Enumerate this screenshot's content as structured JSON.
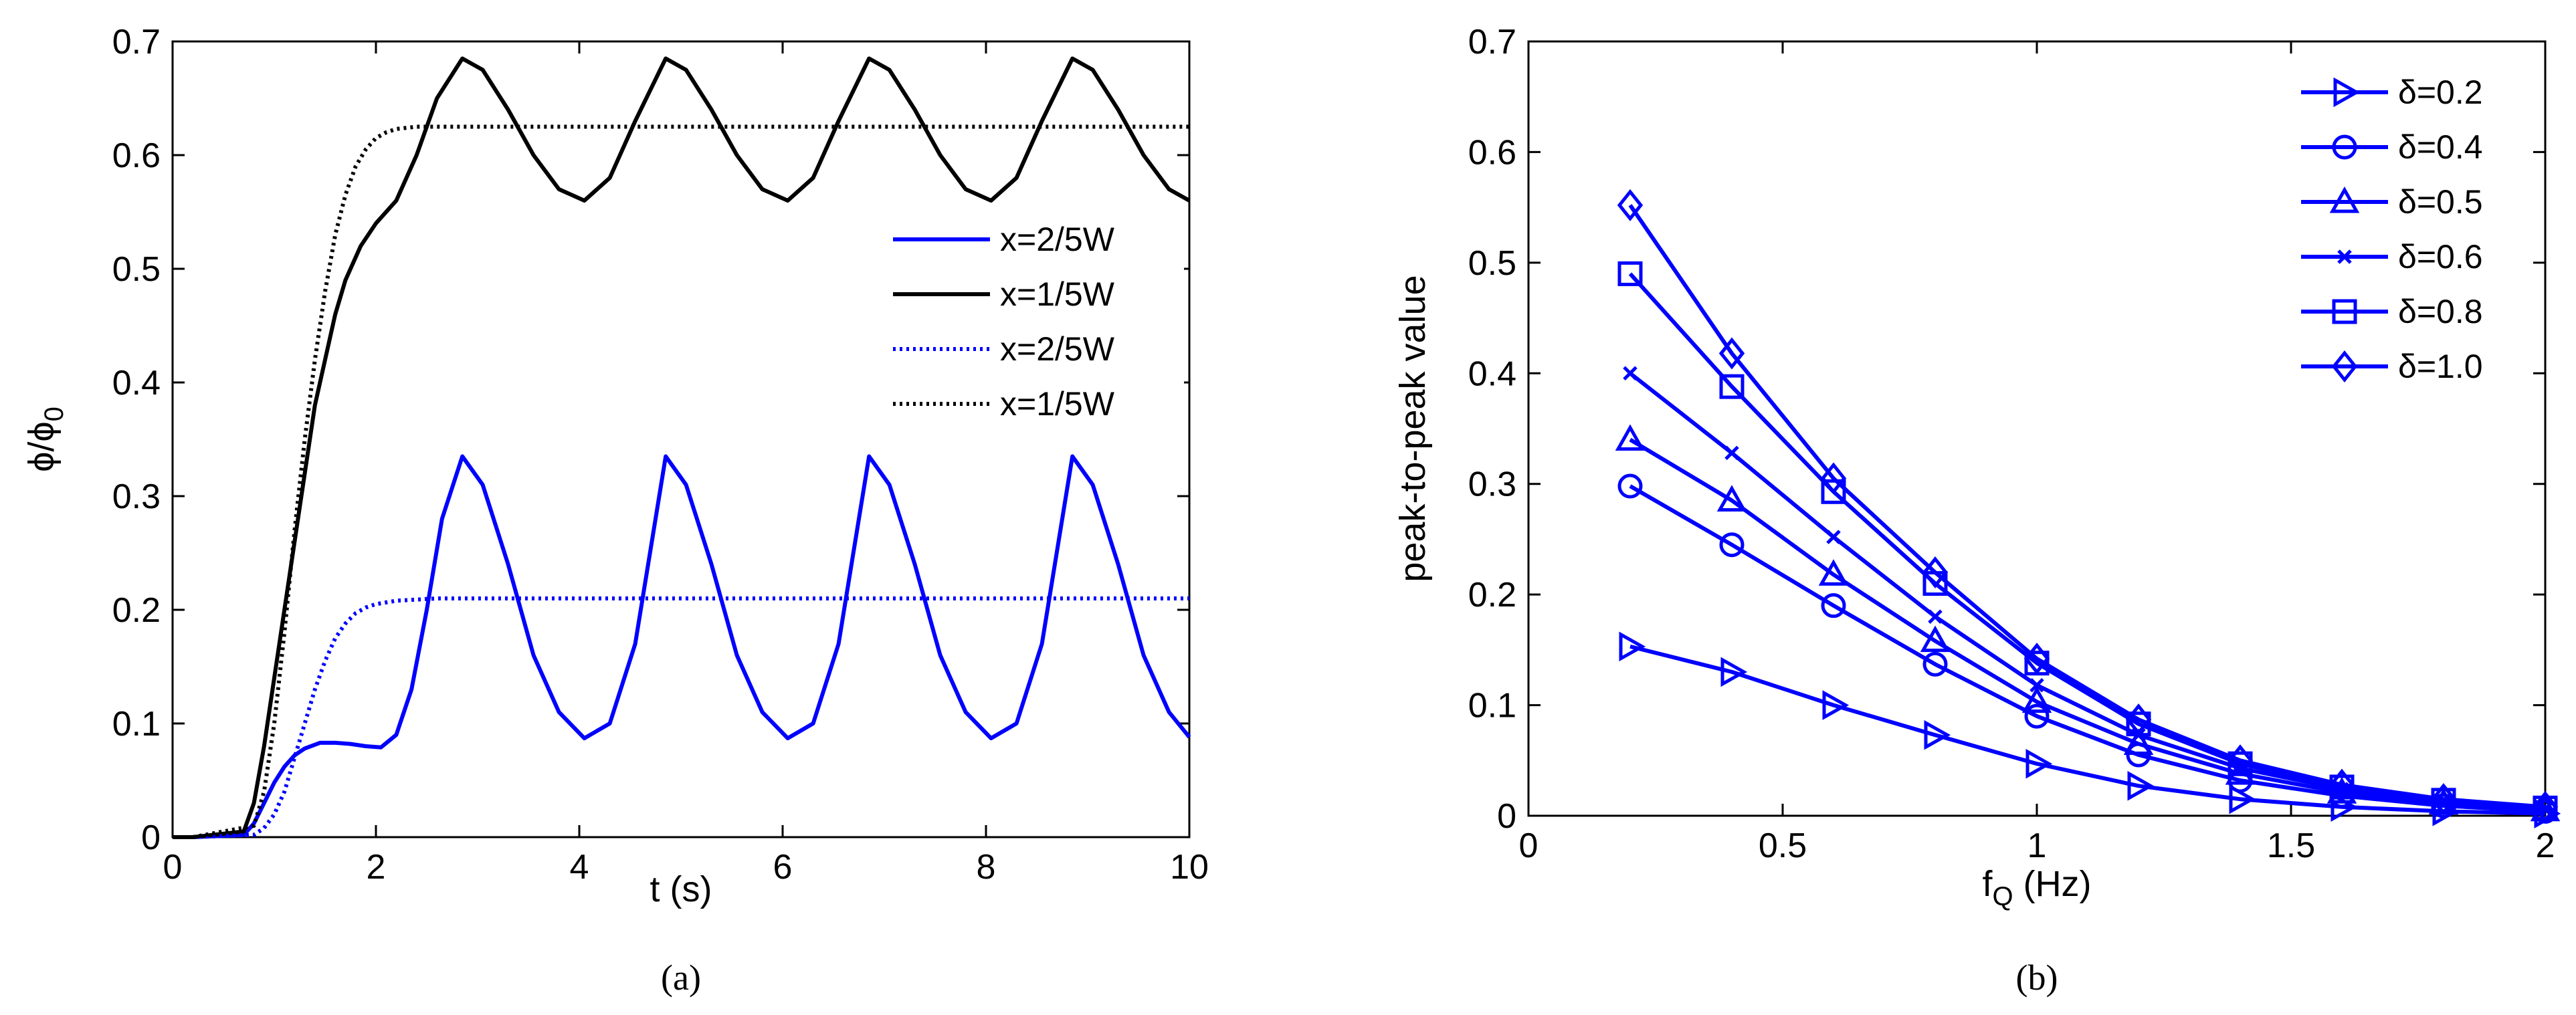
{
  "chart_data": [
    {
      "id": "a",
      "type": "line",
      "caption": "(a)",
      "xlabel": "t (s)",
      "ylabel_parts": [
        "ϕ/ϕ",
        "0"
      ],
      "xlim": [
        0,
        10
      ],
      "ylim": [
        0,
        0.7
      ],
      "xticks": [
        0,
        2,
        4,
        6,
        8,
        10
      ],
      "yticks": [
        0,
        0.1,
        0.2,
        0.3,
        0.4,
        0.5,
        0.6,
        0.7
      ],
      "xtick_labels": [
        "0",
        "2",
        "4",
        "6",
        "8",
        "10"
      ],
      "ytick_labels": [
        "0",
        "0.1",
        "0.2",
        "0.3",
        "0.4",
        "0.5",
        "0.6",
        "0.7"
      ],
      "legend_position": "center-right",
      "series": [
        {
          "name": "x=2/5W",
          "color": "#0000ff",
          "style": "solid",
          "x": [
            0,
            0.2,
            0.7,
            0.8,
            0.9,
            1.0,
            1.1,
            1.2,
            1.3,
            1.45,
            1.6,
            1.75,
            1.9,
            2.05,
            2.2,
            2.35,
            2.5,
            2.65,
            2.85,
            3.05,
            3.3,
            3.55,
            3.8,
            4.05,
            4.3,
            4.55,
            4.85,
            5.05,
            5.3,
            5.55,
            5.8,
            6.05,
            6.3,
            6.55,
            6.85,
            7.05,
            7.3,
            7.55,
            7.8,
            8.05,
            8.3,
            8.55,
            8.85,
            9.05,
            9.3,
            9.55,
            9.8,
            10.0
          ],
          "y": [
            0,
            0,
            0.002,
            0.012,
            0.03,
            0.048,
            0.062,
            0.072,
            0.078,
            0.083,
            0.083,
            0.082,
            0.08,
            0.079,
            0.09,
            0.13,
            0.2,
            0.28,
            0.335,
            0.31,
            0.24,
            0.16,
            0.11,
            0.087,
            0.1,
            0.17,
            0.335,
            0.31,
            0.24,
            0.16,
            0.11,
            0.087,
            0.1,
            0.17,
            0.335,
            0.31,
            0.24,
            0.16,
            0.11,
            0.087,
            0.1,
            0.17,
            0.335,
            0.31,
            0.24,
            0.16,
            0.11,
            0.088
          ]
        },
        {
          "name": "x=1/5W",
          "color": "#000000",
          "style": "solid",
          "x": [
            0,
            0.2,
            0.7,
            0.8,
            0.9,
            1.0,
            1.1,
            1.2,
            1.3,
            1.4,
            1.5,
            1.6,
            1.7,
            1.85,
            2.0,
            2.2,
            2.4,
            2.6,
            2.85,
            3.05,
            3.3,
            3.55,
            3.8,
            4.05,
            4.3,
            4.55,
            4.85,
            5.05,
            5.3,
            5.55,
            5.8,
            6.05,
            6.3,
            6.55,
            6.85,
            7.05,
            7.3,
            7.55,
            7.8,
            8.05,
            8.3,
            8.55,
            8.85,
            9.05,
            9.3,
            9.55,
            9.8,
            10.0
          ],
          "y": [
            0,
            0,
            0.005,
            0.03,
            0.08,
            0.14,
            0.2,
            0.26,
            0.32,
            0.38,
            0.42,
            0.46,
            0.49,
            0.52,
            0.54,
            0.56,
            0.6,
            0.65,
            0.685,
            0.675,
            0.64,
            0.6,
            0.57,
            0.56,
            0.58,
            0.63,
            0.685,
            0.675,
            0.64,
            0.6,
            0.57,
            0.56,
            0.58,
            0.63,
            0.685,
            0.675,
            0.64,
            0.6,
            0.57,
            0.56,
            0.58,
            0.63,
            0.685,
            0.675,
            0.64,
            0.6,
            0.57,
            0.56
          ]
        },
        {
          "name": "x=2/5W",
          "color": "#0000ff",
          "style": "dotted",
          "x": [
            0,
            0.2,
            0.8,
            0.9,
            1.0,
            1.1,
            1.2,
            1.3,
            1.4,
            1.5,
            1.6,
            1.7,
            1.8,
            1.9,
            2.0,
            2.2,
            2.4,
            2.6,
            3.0,
            4.0,
            10.0
          ],
          "y": [
            0,
            0,
            0.002,
            0.008,
            0.02,
            0.04,
            0.07,
            0.1,
            0.13,
            0.155,
            0.175,
            0.188,
            0.197,
            0.202,
            0.205,
            0.208,
            0.209,
            0.21,
            0.21,
            0.21,
            0.21
          ]
        },
        {
          "name": "x=1/5W",
          "color": "#000000",
          "style": "dotted",
          "x": [
            0,
            0.2,
            0.8,
            0.9,
            1.0,
            1.1,
            1.2,
            1.3,
            1.4,
            1.5,
            1.6,
            1.7,
            1.8,
            1.9,
            2.0,
            2.1,
            2.2,
            2.4,
            2.6,
            3.0,
            10.0
          ],
          "y": [
            0,
            0,
            0.01,
            0.04,
            0.1,
            0.18,
            0.27,
            0.35,
            0.42,
            0.48,
            0.53,
            0.565,
            0.59,
            0.605,
            0.615,
            0.62,
            0.623,
            0.625,
            0.625,
            0.625,
            0.625
          ]
        }
      ]
    },
    {
      "id": "b",
      "type": "line",
      "caption": "(b)",
      "xlabel_parts": [
        "f",
        "Q",
        " (Hz)"
      ],
      "ylabel": "peak-to-peak value",
      "xlim": [
        0,
        2
      ],
      "ylim": [
        0,
        0.7
      ],
      "xticks": [
        0,
        0.5,
        1,
        1.5,
        2
      ],
      "yticks": [
        0,
        0.1,
        0.2,
        0.3,
        0.4,
        0.5,
        0.6,
        0.7
      ],
      "xtick_labels": [
        "0",
        "0.5",
        "1",
        "1.5",
        "2"
      ],
      "ytick_labels": [
        "0",
        "0.1",
        "0.2",
        "0.3",
        "0.4",
        "0.5",
        "0.6",
        "0.7"
      ],
      "legend_position": "top-right",
      "x": [
        0.2,
        0.4,
        0.6,
        0.8,
        1.0,
        1.2,
        1.4,
        1.6,
        1.8,
        2.0
      ],
      "series": [
        {
          "name": "δ=0.2",
          "marker": "triangle-right",
          "color": "#0000ff",
          "values": [
            0.153,
            0.13,
            0.1,
            0.073,
            0.047,
            0.027,
            0.015,
            0.008,
            0.004,
            0.002
          ]
        },
        {
          "name": "δ=0.4",
          "marker": "circle",
          "color": "#0000ff",
          "values": [
            0.298,
            0.245,
            0.19,
            0.137,
            0.09,
            0.055,
            0.032,
            0.018,
            0.009,
            0.004
          ]
        },
        {
          "name": "δ=0.5",
          "marker": "triangle-up",
          "color": "#0000ff",
          "values": [
            0.34,
            0.285,
            0.218,
            0.158,
            0.103,
            0.065,
            0.038,
            0.021,
            0.011,
            0.005
          ]
        },
        {
          "name": "δ=0.6",
          "marker": "x",
          "color": "#0000ff",
          "values": [
            0.4,
            0.328,
            0.252,
            0.18,
            0.118,
            0.073,
            0.043,
            0.024,
            0.012,
            0.006
          ]
        },
        {
          "name": "δ=0.8",
          "marker": "square",
          "color": "#0000ff",
          "values": [
            0.49,
            0.388,
            0.293,
            0.21,
            0.138,
            0.083,
            0.047,
            0.026,
            0.014,
            0.007
          ]
        },
        {
          "name": "δ=1.0",
          "marker": "diamond",
          "color": "#0000ff",
          "values": [
            0.552,
            0.418,
            0.305,
            0.22,
            0.142,
            0.087,
            0.05,
            0.028,
            0.015,
            0.008
          ]
        }
      ]
    }
  ]
}
